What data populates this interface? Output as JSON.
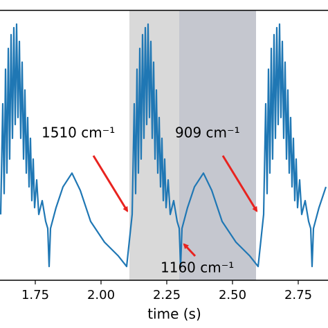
{
  "chart_data": {
    "type": "line",
    "x_label": "time (s)",
    "xlim": [
      1.6158,
      2.8632
    ],
    "ylim": [
      0,
      1
    ],
    "xticks": [
      1.75,
      {
        "value": 2,
        "label": "2.00"
      },
      2.25,
      {
        "value": 2.5,
        "label": "2.50"
      },
      2.75
    ],
    "spans": [
      {
        "start": 2.1079,
        "end": 2.2974,
        "color": "#d9d9d9"
      },
      {
        "start": 2.2974,
        "end": 2.5895,
        "color": "#c5c7cf"
      }
    ],
    "annotations": [
      "1510 cm⁻¹",
      "909 cm⁻¹",
      "1160 cm⁻¹"
    ],
    "annotation_color": "#e8231f",
    "series": [
      {
        "color": "#1f77b4",
        "x": [
          1.6184,
          1.6263,
          1.6316,
          1.6368,
          1.6421,
          1.6474,
          1.6526,
          1.6579,
          1.6632,
          1.6684,
          1.6737,
          1.6789,
          1.6842,
          1.6895,
          1.6947,
          1.7,
          1.7053,
          1.7105,
          1.7158,
          1.7211,
          1.7263,
          1.7316,
          1.7368,
          1.7421,
          1.7474,
          1.7553,
          1.7632,
          1.7763,
          1.7895,
          1.7974,
          1.8026,
          1.8079,
          1.8289,
          1.8553,
          1.8895,
          1.9211,
          1.9605,
          2.0132,
          2.0658,
          2.0974,
          2.1184,
          2.1263,
          2.1316,
          2.1368,
          2.1421,
          2.1474,
          2.1526,
          2.1579,
          2.1632,
          2.1684,
          2.1737,
          2.1789,
          2.1842,
          2.1895,
          2.1947,
          2.2,
          2.2053,
          2.2105,
          2.2158,
          2.2211,
          2.2263,
          2.2316,
          2.2368,
          2.2421,
          2.2474,
          2.2553,
          2.2632,
          2.2763,
          2.2895,
          2.2974,
          2.3026,
          2.3079,
          2.3289,
          2.3553,
          2.3895,
          2.4211,
          2.4605,
          2.5132,
          2.5658,
          2.5974,
          2.6184,
          2.6263,
          2.6316,
          2.6368,
          2.6421,
          2.6474,
          2.6526,
          2.6579,
          2.6632,
          2.6684,
          2.6737,
          2.6789,
          2.6842,
          2.6895,
          2.6947,
          2.7,
          2.7053,
          2.7105,
          2.7158,
          2.7211,
          2.7263,
          2.7316,
          2.7368,
          2.7421,
          2.7474,
          2.7553,
          2.7632,
          2.7763,
          2.7895,
          2.7974,
          2.8026,
          2.8079,
          2.8289,
          2.8553
        ],
        "values": [
          0.244,
          0.654,
          0.321,
          0.782,
          0.397,
          0.859,
          0.449,
          0.91,
          0.526,
          0.936,
          0.577,
          0.949,
          0.603,
          0.885,
          0.526,
          0.808,
          0.449,
          0.705,
          0.397,
          0.603,
          0.346,
          0.526,
          0.295,
          0.449,
          0.269,
          0.372,
          0.244,
          0.295,
          0.218,
          0.192,
          0.051,
          0.192,
          0.269,
          0.346,
          0.397,
          0.333,
          0.218,
          0.141,
          0.09,
          0.051,
          0.244,
          0.654,
          0.321,
          0.782,
          0.397,
          0.859,
          0.449,
          0.91,
          0.526,
          0.936,
          0.577,
          0.949,
          0.603,
          0.885,
          0.526,
          0.808,
          0.449,
          0.705,
          0.397,
          0.603,
          0.346,
          0.526,
          0.295,
          0.449,
          0.269,
          0.372,
          0.244,
          0.295,
          0.218,
          0.192,
          0.051,
          0.192,
          0.269,
          0.346,
          0.397,
          0.333,
          0.218,
          0.141,
          0.09,
          0.051,
          0.244,
          0.654,
          0.321,
          0.782,
          0.397,
          0.859,
          0.449,
          0.91,
          0.526,
          0.936,
          0.577,
          0.949,
          0.603,
          0.885,
          0.526,
          0.808,
          0.449,
          0.705,
          0.397,
          0.603,
          0.346,
          0.526,
          0.295,
          0.449,
          0.269,
          0.372,
          0.244,
          0.295,
          0.218,
          0.192,
          0.051,
          0.192,
          0.269,
          0.346
        ]
      }
    ]
  }
}
